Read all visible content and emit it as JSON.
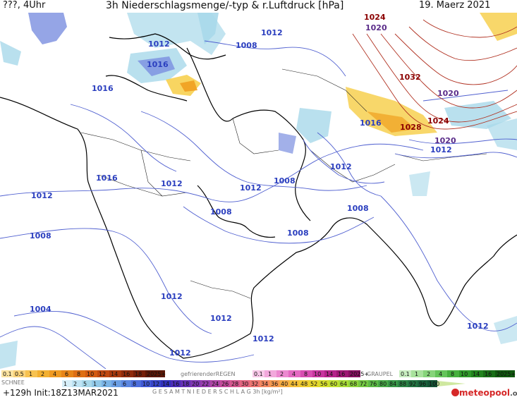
{
  "header": {
    "left": "???, 4Uhr",
    "title": "3h Niederschlagsmenge/-typ & r.Luftdruck [hPa]",
    "date": "19. Maerz 2021"
  },
  "isobar_labels": [
    {
      "text": "1024",
      "color": "#8b0000"
    },
    {
      "text": "1020",
      "color": "#5b2d8a"
    },
    {
      "text": "1012",
      "color": "#2b3fbf"
    },
    {
      "text": "1012",
      "color": "#2b3fbf"
    },
    {
      "text": "1008",
      "color": "#2b3fbf"
    },
    {
      "text": "1016",
      "color": "#2b3fbf"
    },
    {
      "text": "1016",
      "color": "#2b3fbf"
    },
    {
      "text": "1032",
      "color": "#8b0000"
    },
    {
      "text": "1020",
      "color": "#5b2d8a"
    },
    {
      "text": "1016",
      "color": "#2b3fbf"
    },
    {
      "text": "1028",
      "color": "#8b0000"
    },
    {
      "text": "1024",
      "color": "#8b0000"
    },
    {
      "text": "1020",
      "color": "#5b2d8a"
    },
    {
      "text": "1012",
      "color": "#2b3fbf"
    },
    {
      "text": "1012",
      "color": "#2b3fbf"
    },
    {
      "text": "1016",
      "color": "#2b3fbf"
    },
    {
      "text": "1012",
      "color": "#2b3fbf"
    },
    {
      "text": "1012",
      "color": "#2b3fbf"
    },
    {
      "text": "1008",
      "color": "#2b3fbf"
    },
    {
      "text": "1012",
      "color": "#2b3fbf"
    },
    {
      "text": "1008",
      "color": "#2b3fbf"
    },
    {
      "text": "1008",
      "color": "#2b3fbf"
    },
    {
      "text": "1008",
      "color": "#2b3fbf"
    },
    {
      "text": "1008",
      "color": "#2b3fbf"
    },
    {
      "text": "1012",
      "color": "#2b3fbf"
    },
    {
      "text": "1004",
      "color": "#2b3fbf"
    },
    {
      "text": "1012",
      "color": "#2b3fbf"
    },
    {
      "text": "1012",
      "color": "#2b3fbf"
    },
    {
      "text": "1012",
      "color": "#2b3fbf"
    },
    {
      "text": "1012",
      "color": "#2b3fbf"
    }
  ],
  "legend": {
    "snow_label": "SCHNEE",
    "snow_values": [
      "0.1",
      "0.5",
      "1",
      "2",
      "4",
      "6",
      "8",
      "10",
      "12",
      "14",
      "16",
      "18",
      "2025+"
    ],
    "frz_label": "gefrierenderREGEN",
    "frz_values": [
      "0.1",
      "1",
      "2",
      "4",
      "8",
      "10",
      "14",
      "16",
      "2025+"
    ],
    "graupel_label": "GRAUPEL",
    "graupel_values": [
      "0.1",
      "1",
      "2",
      "4",
      "8",
      "10",
      "14",
      "16",
      "2025+"
    ],
    "total_values": [
      "1",
      "2",
      "5",
      "1",
      "2",
      "4",
      "6",
      "8",
      "10",
      "12",
      "14",
      "16",
      "18",
      "20",
      "22",
      "24",
      "26",
      "28",
      "30",
      "32",
      "34",
      "36",
      "40",
      "44",
      "48",
      "52",
      "56",
      "60",
      "64",
      "68",
      "72",
      "76",
      "80",
      "84",
      "88",
      "92",
      "96",
      "100"
    ],
    "total_label": "G E S A M T N I E D E R S C H L A G   3h   [kg/m²]"
  },
  "footer": {
    "run": "+129h  Init:18Z13MAR2021",
    "brand_main": "meteopool",
    "brand_suffix": ".org"
  },
  "colors": {
    "isobar_blue": "#5060d0",
    "isobar_red": "#b03020",
    "precip_light": "#a8d8ea",
    "precip_mid": "#7a8fe0",
    "snow_orange": "#f0a020",
    "snow_yellow": "#f7d050",
    "coast": "#000000",
    "brand": "#d62828"
  }
}
